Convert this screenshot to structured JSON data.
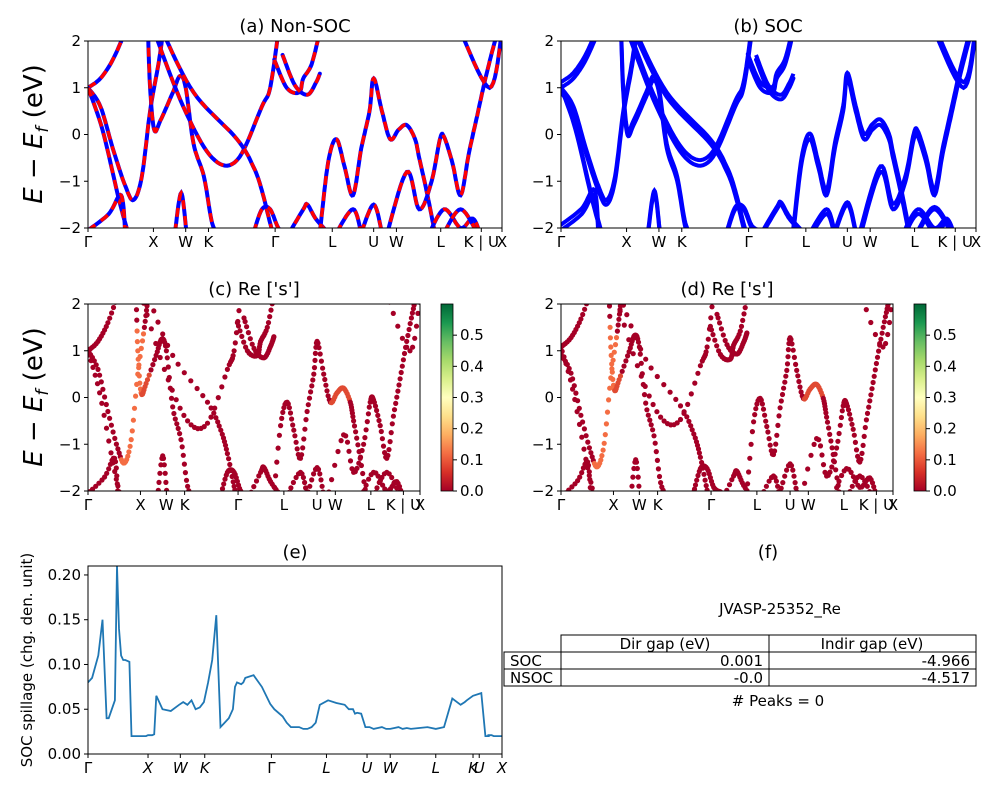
{
  "chart_data": [
    {
      "id": "a",
      "type": "line",
      "title": "(a) Non-SOC",
      "ylabel": "E − E_f (eV)",
      "ylim": [
        -2,
        2
      ],
      "yticks": [
        "−2",
        "−1",
        "0",
        "1",
        "2"
      ],
      "kpath_labels": [
        "Γ",
        "X",
        "W",
        "K",
        "Γ",
        "L",
        "U",
        "W",
        "L",
        "K | U",
        "X"
      ],
      "series": [
        {
          "style": "solid",
          "color": "#0000ff"
        },
        {
          "style": "dashed",
          "color": "#ff0000"
        }
      ]
    },
    {
      "id": "b",
      "type": "line",
      "title": "(b) SOC",
      "ylim": [
        -2,
        2
      ],
      "yticks": [
        "−2",
        "−1",
        "0",
        "1",
        "2"
      ],
      "kpath_labels": [
        "Γ",
        "X",
        "W",
        "K",
        "Γ",
        "L",
        "U",
        "W",
        "L",
        "K | U",
        "X"
      ],
      "series": [
        {
          "style": "solid",
          "color": "#0000ff"
        }
      ]
    },
    {
      "id": "c",
      "type": "scatter",
      "title": "(c)  Re ['s']",
      "ylabel": "E − E_f (eV)",
      "ylim": [
        -2,
        2
      ],
      "yticks": [
        "−2",
        "−1",
        "0",
        "1",
        "2"
      ],
      "kpath_labels": [
        "Γ",
        "X",
        "W",
        "K",
        "Γ",
        "L",
        "U",
        "W",
        "L",
        "K | U",
        "X"
      ],
      "colorbar": {
        "colormap": "RdYlGn",
        "min": 0.0,
        "max": 0.6,
        "ticks": [
          "0.0",
          "0.1",
          "0.2",
          "0.3",
          "0.4",
          "0.5"
        ]
      }
    },
    {
      "id": "d",
      "type": "scatter",
      "title": "(d) Re ['s']",
      "ylim": [
        -2,
        2
      ],
      "yticks": [
        "−2",
        "−1",
        "0",
        "1",
        "2"
      ],
      "kpath_labels": [
        "Γ",
        "X",
        "W",
        "K",
        "Γ",
        "L",
        "U",
        "W",
        "L",
        "K | U",
        "X"
      ],
      "colorbar": {
        "colormap": "RdYlGn",
        "min": 0.0,
        "max": 0.6,
        "ticks": [
          "0.0",
          "0.1",
          "0.2",
          "0.3",
          "0.4",
          "0.5"
        ]
      }
    },
    {
      "id": "e",
      "type": "line",
      "title": "(e)",
      "ylabel": "SOC spillage (chg. den. unit)",
      "ylim": [
        0,
        0.21
      ],
      "yticks": [
        "0.00",
        "0.05",
        "0.10",
        "0.15",
        "0.20"
      ],
      "xtick_labels": [
        "Γ",
        "X",
        "W",
        "K",
        "Γ",
        "L",
        "U",
        "W",
        "L",
        "K",
        "U",
        "X"
      ],
      "series": [
        {
          "color": "#1f77b4"
        }
      ],
      "x": [
        0,
        0.01,
        0.025,
        0.035,
        0.045,
        0.05,
        0.065,
        0.07,
        0.075,
        0.08,
        0.085,
        0.09,
        0.1,
        0.105,
        0.11,
        0.12,
        0.125,
        0.13,
        0.135,
        0.14,
        0.145,
        0.15,
        0.155,
        0.16,
        0.165,
        0.17,
        0.18,
        0.2,
        0.22,
        0.23,
        0.24,
        0.25,
        0.26,
        0.27,
        0.28,
        0.29,
        0.3,
        0.31,
        0.32,
        0.33,
        0.34,
        0.35,
        0.355,
        0.36,
        0.37,
        0.375,
        0.38,
        0.4,
        0.42,
        0.44,
        0.45,
        0.47,
        0.48,
        0.49,
        0.5,
        0.51,
        0.52,
        0.53,
        0.54,
        0.55,
        0.56,
        0.58,
        0.6,
        0.62,
        0.63,
        0.64,
        0.645,
        0.65,
        0.66,
        0.67,
        0.68,
        0.69,
        0.7,
        0.71,
        0.72,
        0.73,
        0.74,
        0.75,
        0.76,
        0.77,
        0.78,
        0.8,
        0.82,
        0.84,
        0.86,
        0.88,
        0.9,
        0.91,
        0.915,
        0.93,
        0.95,
        0.96,
        0.97,
        0.965,
        0.975,
        0.98,
        1.0
      ],
      "values": [
        0.08,
        0.085,
        0.11,
        0.15,
        0.04,
        0.04,
        0.06,
        0.21,
        0.14,
        0.11,
        0.105,
        0.105,
        0.103,
        0.02,
        0.02,
        0.02,
        0.02,
        0.02,
        0.02,
        0.02,
        0.021,
        0.021,
        0.021,
        0.022,
        0.065,
        0.06,
        0.05,
        0.048,
        0.055,
        0.058,
        0.055,
        0.06,
        0.05,
        0.052,
        0.058,
        0.08,
        0.105,
        0.155,
        0.03,
        0.035,
        0.04,
        0.05,
        0.075,
        0.08,
        0.078,
        0.08,
        0.085,
        0.088,
        0.075,
        0.056,
        0.05,
        0.042,
        0.035,
        0.03,
        0.03,
        0.03,
        0.028,
        0.028,
        0.03,
        0.035,
        0.055,
        0.06,
        0.057,
        0.055,
        0.05,
        0.05,
        0.045,
        0.046,
        0.045,
        0.03,
        0.03,
        0.028,
        0.029,
        0.03,
        0.028,
        0.028,
        0.029,
        0.03,
        0.028,
        0.029,
        0.028,
        0.029,
        0.03,
        0.028,
        0.03,
        0.062,
        0.055,
        0.058,
        0.06,
        0.065,
        0.068,
        0.02,
        0.02,
        0.021,
        0.021,
        0.02,
        0.02
      ]
    }
  ],
  "panel_f": {
    "title": "(f)",
    "material": "JVASP-25352_Re",
    "headers": [
      "",
      "Dir gap (eV)",
      "Indir gap (eV)"
    ],
    "rows": [
      {
        "label": "SOC",
        "dir_gap": "0.001",
        "indir_gap": "-4.966"
      },
      {
        "label": "NSOC",
        "dir_gap": "-0.0",
        "indir_gap": "-4.517"
      }
    ],
    "peaks_text": "# Peaks = 0"
  }
}
